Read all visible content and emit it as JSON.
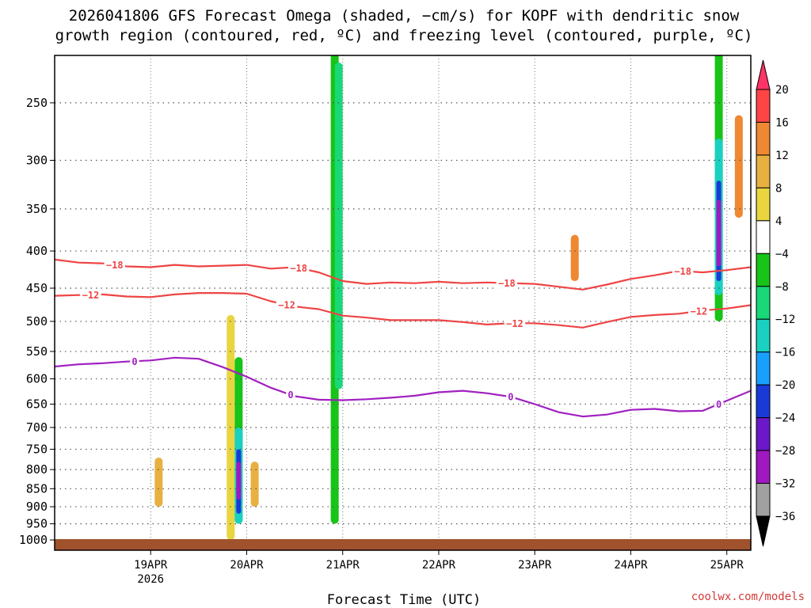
{
  "chart_data": {
    "type": "heatmap",
    "title_lines": [
      "2026041806 GFS Forecast Omega (shaded, −cm/s) for KOPF with dendritic snow",
      "growth region (contoured, red, ºC) and freezing level (contoured, purple, ºC)"
    ],
    "xlabel": "Forecast Time (UTC)",
    "ylabel": "",
    "credit": "coolwx.com/models",
    "ylim": [
      1000,
      200
    ],
    "x_range_hours": [
      -18,
      156
    ],
    "y_ticks": [
      {
        "value": 250,
        "label": "250"
      },
      {
        "value": 300,
        "label": "300"
      },
      {
        "value": 350,
        "label": "350"
      },
      {
        "value": 400,
        "label": "400"
      },
      {
        "value": 450,
        "label": "450"
      },
      {
        "value": 500,
        "label": "500"
      },
      {
        "value": 550,
        "label": "550"
      },
      {
        "value": 600,
        "label": "600"
      },
      {
        "value": 650,
        "label": "650"
      },
      {
        "value": 700,
        "label": "700"
      },
      {
        "value": 750,
        "label": "750"
      },
      {
        "value": 800,
        "label": "800"
      },
      {
        "value": 850,
        "label": "850"
      },
      {
        "value": 900,
        "label": "900"
      },
      {
        "value": 950,
        "label": "950"
      },
      {
        "value": 1000,
        "label": "1000"
      }
    ],
    "x_ticks": [
      {
        "hour": 6,
        "label": "19APR",
        "sub": "2026"
      },
      {
        "hour": 30,
        "label": "20APR",
        "sub": ""
      },
      {
        "hour": 54,
        "label": "21APR",
        "sub": ""
      },
      {
        "hour": 78,
        "label": "22APR",
        "sub": ""
      },
      {
        "hour": 102,
        "label": "23APR",
        "sub": ""
      },
      {
        "hour": 126,
        "label": "24APR",
        "sub": ""
      },
      {
        "hour": 150,
        "label": "25APR",
        "sub": ""
      }
    ],
    "colorbar": {
      "labels": [
        "20",
        "16",
        "12",
        "8",
        "4",
        "−4",
        "−8",
        "−12",
        "−16",
        "−20",
        "−24",
        "−28",
        "−32",
        "−36"
      ],
      "colors": [
        "#ff3366",
        "#ff4444",
        "#ee8833",
        "#e8b040",
        "#e8d540",
        "#ffffff",
        "#17c417",
        "#18d878",
        "#1ad0c0",
        "#18a0ff",
        "#1a3ad8",
        "#6a18c8",
        "#a018c0",
        "#a0a0a0",
        "#000000"
      ]
    },
    "series": [
      {
        "name": "-18",
        "color": "#ee4444",
        "label": "−18",
        "label_hours": [
          -3,
          43,
          95,
          139
        ],
        "x": [
          -18,
          -12,
          -6,
          0,
          6,
          12,
          18,
          24,
          30,
          36,
          42,
          48,
          54,
          60,
          66,
          72,
          78,
          84,
          90,
          96,
          102,
          108,
          114,
          120,
          126,
          132,
          138,
          144,
          150,
          156
        ],
        "y": [
          411,
          415,
          416,
          420,
          421,
          418,
          420,
          419,
          418,
          423,
          421,
          428,
          440,
          444,
          442,
          443,
          441,
          443,
          442,
          443,
          444,
          448,
          452,
          445,
          437,
          432,
          426,
          428,
          425,
          421
        ]
      },
      {
        "name": "-12",
        "color": "#ee4444",
        "label": "−12",
        "label_hours": [
          -9,
          40,
          97,
          143
        ],
        "x": [
          -18,
          -12,
          -6,
          0,
          6,
          12,
          18,
          24,
          30,
          36,
          42,
          48,
          54,
          60,
          66,
          72,
          78,
          84,
          90,
          96,
          102,
          108,
          114,
          120,
          126,
          132,
          138,
          144,
          150,
          156
        ],
        "y": [
          461,
          460,
          459,
          462,
          463,
          459,
          457,
          457,
          458,
          469,
          477,
          481,
          491,
          494,
          498,
          498,
          498,
          501,
          505,
          503,
          503,
          506,
          510,
          501,
          493,
          490,
          488,
          483,
          480,
          475
        ]
      },
      {
        "name": "0",
        "color": "#a020c0",
        "label": "0",
        "label_hours": [
          2,
          41,
          96,
          148
        ],
        "x": [
          -18,
          -12,
          -6,
          0,
          6,
          12,
          18,
          24,
          30,
          36,
          42,
          48,
          54,
          60,
          66,
          72,
          78,
          84,
          90,
          96,
          102,
          108,
          114,
          120,
          126,
          132,
          138,
          144,
          150,
          156
        ],
        "y": [
          577,
          573,
          571,
          568,
          566,
          561,
          563,
          578,
          596,
          617,
          634,
          641,
          642,
          640,
          637,
          633,
          626,
          623,
          628,
          635,
          650,
          667,
          676,
          672,
          662,
          660,
          665,
          664,
          643,
          623
        ]
      }
    ],
    "omega_cells": [
      {
        "hour": 26,
        "p1": 490,
        "p2": 1000,
        "value": 4
      },
      {
        "hour": 28,
        "p1": 560,
        "p2": 950,
        "value": -8
      },
      {
        "hour": 28,
        "p1": 700,
        "p2": 950,
        "value": -16
      },
      {
        "hour": 28,
        "p1": 750,
        "p2": 920,
        "value": -24
      },
      {
        "hour": 28,
        "p1": 780,
        "p2": 880,
        "value": -32
      },
      {
        "hour": 32,
        "p1": 780,
        "p2": 900,
        "value": 8
      },
      {
        "hour": 8,
        "p1": 770,
        "p2": 900,
        "value": 8
      },
      {
        "hour": 52,
        "p1": 200,
        "p2": 950,
        "value": -8
      },
      {
        "hour": 53,
        "p1": 220,
        "p2": 620,
        "value": -12
      },
      {
        "hour": 148,
        "p1": 200,
        "p2": 500,
        "value": -8
      },
      {
        "hour": 148,
        "p1": 280,
        "p2": 460,
        "value": -16
      },
      {
        "hour": 148,
        "p1": 320,
        "p2": 440,
        "value": -24
      },
      {
        "hour": 148,
        "p1": 340,
        "p2": 420,
        "value": -32
      },
      {
        "hour": 112,
        "p1": 380,
        "p2": 440,
        "value": 12
      },
      {
        "hour": 153,
        "p1": 260,
        "p2": 360,
        "value": 12
      }
    ]
  }
}
